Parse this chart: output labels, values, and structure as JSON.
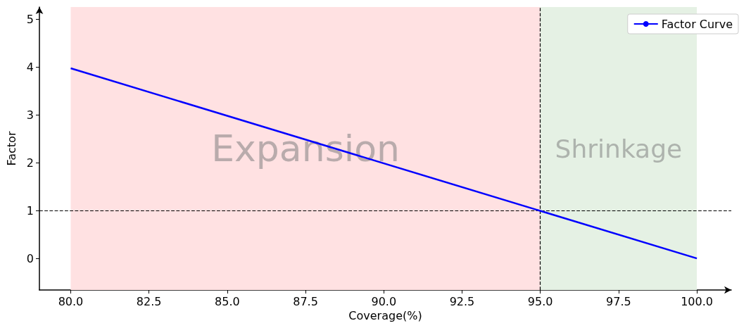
{
  "chart_data": {
    "type": "line",
    "xlabel": "Coverage(%)",
    "ylabel": "Factor",
    "x": [
      80,
      100
    ],
    "series": [
      {
        "name": "Factor Curve",
        "color": "#0000ff",
        "values": [
          3.97,
          0
        ]
      }
    ],
    "xlim": [
      79,
      101.1
    ],
    "ylim": [
      -0.66,
      5.25
    ],
    "xticks": [
      {
        "value": 80,
        "label": "80.0"
      },
      {
        "value": 82.5,
        "label": "82.5"
      },
      {
        "value": 85,
        "label": "85.0"
      },
      {
        "value": 87.5,
        "label": "87.5"
      },
      {
        "value": 90,
        "label": "90.0"
      },
      {
        "value": 92.5,
        "label": "92.5"
      },
      {
        "value": 95,
        "label": "95.0"
      },
      {
        "value": 97.5,
        "label": "97.5"
      },
      {
        "value": 100,
        "label": "100.0"
      }
    ],
    "yticks": [
      0,
      1,
      2,
      3,
      4,
      5
    ],
    "bands": [
      {
        "axis": "x",
        "from": 80,
        "to": 95,
        "label": "Expansion",
        "color": "#ffe1e2"
      },
      {
        "axis": "x",
        "from": 95,
        "to": 100,
        "label": "Shrinkage",
        "color": "#e5f1e4"
      }
    ],
    "ref_lines": [
      {
        "axis": "y",
        "value": 1,
        "line_style": "dashed",
        "color": "#000000"
      },
      {
        "axis": "x",
        "value": 95,
        "line_style": "dashed",
        "color": "#000000"
      }
    ],
    "grid": false,
    "legend": "top right",
    "marker": "none",
    "line_style": "solid"
  }
}
